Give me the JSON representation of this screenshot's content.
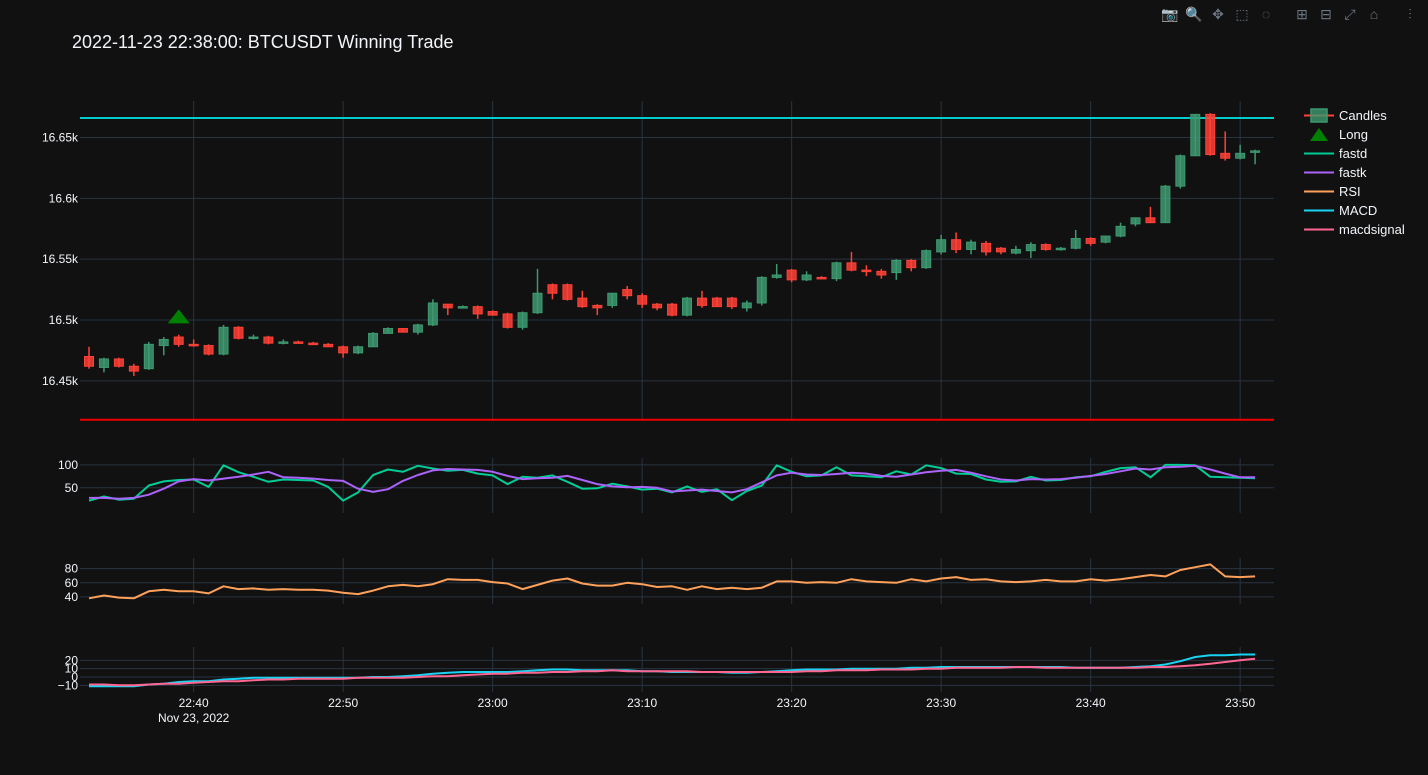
{
  "title": "2022-11-23 22:38:00: BTCUSDT Winning Trade",
  "modebar": [
    {
      "name": "camera-icon",
      "glyph": "📷",
      "active": false
    },
    {
      "name": "zoom-icon",
      "glyph": "🔍",
      "active": true
    },
    {
      "name": "pan-icon",
      "glyph": "✥",
      "active": false
    },
    {
      "name": "box-select-icon",
      "glyph": "⬚",
      "active": false
    },
    {
      "name": "lasso-select-icon",
      "glyph": "◌",
      "active": false
    },
    {
      "name": "sep",
      "glyph": "",
      "active": false
    },
    {
      "name": "zoom-in-icon",
      "glyph": "⊞",
      "active": false
    },
    {
      "name": "zoom-out-icon",
      "glyph": "⊟",
      "active": false
    },
    {
      "name": "autoscale-icon",
      "glyph": "⤢",
      "active": false
    },
    {
      "name": "reset-axes-icon",
      "glyph": "⌂",
      "active": false
    },
    {
      "name": "sep",
      "glyph": "",
      "active": false
    },
    {
      "name": "plotly-logo-icon",
      "glyph": "⫶",
      "active": false
    }
  ],
  "colors": {
    "up": "#3d9970",
    "down": "#ff4136",
    "long": "#008000",
    "fastd": "#00cc96",
    "fastk": "#ab63fa",
    "rsi": "#ffa15a",
    "macd": "#19d3f3",
    "macdsignal": "#ff6692",
    "take_profit": "#00cccc",
    "stop_loss": "#ee0000",
    "grid": "#283442",
    "axis_text": "#f2f5fa"
  },
  "chart_data": {
    "type": "candlestick",
    "x_start": "22:33",
    "x_step_minutes": 1,
    "x_ticks": [
      {
        "label": "22:40",
        "sub": "Nov 23, 2022",
        "index": 7
      },
      {
        "label": "22:50",
        "sub": "",
        "index": 17
      },
      {
        "label": "23:00",
        "sub": "",
        "index": 27
      },
      {
        "label": "23:10",
        "sub": "",
        "index": 37
      },
      {
        "label": "23:20",
        "sub": "",
        "index": 47
      },
      {
        "label": "23:30",
        "sub": "",
        "index": 57
      },
      {
        "label": "23:40",
        "sub": "",
        "index": 67
      },
      {
        "label": "23:50",
        "sub": "",
        "index": 77
      }
    ],
    "price_axis": {
      "ylim": [
        16417,
        16680
      ],
      "ticks": [
        {
          "v": 16450,
          "label": "16.45k"
        },
        {
          "v": 16500,
          "label": "16.5k"
        },
        {
          "v": 16550,
          "label": "16.55k"
        },
        {
          "v": 16600,
          "label": "16.6k"
        },
        {
          "v": 16650,
          "label": "16.65k"
        }
      ]
    },
    "take_profit": 16666,
    "stop_loss": 16418,
    "long_signal": {
      "index": 6,
      "price": 16503
    },
    "candles": [
      [
        16470,
        16478,
        16460,
        16462
      ],
      [
        16461,
        16469,
        16457,
        16468
      ],
      [
        16468,
        16469,
        16461,
        16462
      ],
      [
        16462,
        16464,
        16454,
        16458
      ],
      [
        16460,
        16482,
        16459,
        16480
      ],
      [
        16479,
        16486,
        16471,
        16484
      ],
      [
        16486,
        16488,
        16478,
        16480
      ],
      [
        16480,
        16484,
        16478,
        16479
      ],
      [
        16479,
        16480,
        16471,
        16472
      ],
      [
        16472,
        16496,
        16471,
        16494
      ],
      [
        16494,
        16495,
        16484,
        16485
      ],
      [
        16485,
        16488,
        16484,
        16486
      ],
      [
        16486,
        16487,
        16480,
        16481
      ],
      [
        16481,
        16484,
        16480,
        16482
      ],
      [
        16482,
        16483,
        16481,
        16481
      ],
      [
        16481,
        16482,
        16480,
        16480
      ],
      [
        16480,
        16481,
        16478,
        16478
      ],
      [
        16478,
        16479,
        16469,
        16473
      ],
      [
        16473,
        16479,
        16472,
        16478
      ],
      [
        16478,
        16490,
        16478,
        16489
      ],
      [
        16489,
        16494,
        16489,
        16493
      ],
      [
        16493,
        16493,
        16490,
        16490
      ],
      [
        16490,
        16497,
        16488,
        16496
      ],
      [
        16496,
        16517,
        16495,
        16514
      ],
      [
        16513,
        16513,
        16504,
        16510
      ],
      [
        16510,
        16512,
        16510,
        16511
      ],
      [
        16511,
        16512,
        16501,
        16505
      ],
      [
        16507,
        16508,
        16504,
        16504
      ],
      [
        16505,
        16506,
        16493,
        16494
      ],
      [
        16494,
        16507,
        16492,
        16506
      ],
      [
        16506,
        16542,
        16505,
        16522
      ],
      [
        16529,
        16530,
        16517,
        16522
      ],
      [
        16529,
        16530,
        16516,
        16517
      ],
      [
        16518,
        16524,
        16510,
        16511
      ],
      [
        16512,
        16513,
        16504,
        16510
      ],
      [
        16512,
        16522,
        16510,
        16522
      ],
      [
        16525,
        16528,
        16517,
        16520
      ],
      [
        16520,
        16522,
        16510,
        16513
      ],
      [
        16513,
        16514,
        16508,
        16510
      ],
      [
        16513,
        16514,
        16503,
        16504
      ],
      [
        16504,
        16519,
        16503,
        16518
      ],
      [
        16518,
        16524,
        16510,
        16512
      ],
      [
        16518,
        16519,
        16511,
        16511
      ],
      [
        16518,
        16519,
        16509,
        16511
      ],
      [
        16510,
        16516,
        16507,
        16514
      ],
      [
        16514,
        16536,
        16512,
        16535
      ],
      [
        16535,
        16546,
        16534,
        16537
      ],
      [
        16541,
        16542,
        16531,
        16533
      ],
      [
        16533,
        16540,
        16532,
        16537
      ],
      [
        16535,
        16536,
        16534,
        16534
      ],
      [
        16534,
        16548,
        16532,
        16547
      ],
      [
        16547,
        16556,
        16540,
        16541
      ],
      [
        16541,
        16545,
        16536,
        16540
      ],
      [
        16540,
        16542,
        16534,
        16537
      ],
      [
        16539,
        16550,
        16533,
        16549
      ],
      [
        16549,
        16550,
        16540,
        16543
      ],
      [
        16543,
        16558,
        16542,
        16557
      ],
      [
        16556,
        16570,
        16554,
        16566
      ],
      [
        16566,
        16572,
        16555,
        16558
      ],
      [
        16558,
        16566,
        16554,
        16564
      ],
      [
        16563,
        16565,
        16553,
        16556
      ],
      [
        16559,
        16560,
        16554,
        16556
      ],
      [
        16555,
        16561,
        16554,
        16558
      ],
      [
        16557,
        16564,
        16551,
        16562
      ],
      [
        16562,
        16563,
        16557,
        16558
      ],
      [
        16559,
        16560,
        16557,
        16559
      ],
      [
        16559,
        16574,
        16558,
        16567
      ],
      [
        16567,
        16568,
        16561,
        16563
      ],
      [
        16564,
        16569,
        16563,
        16569
      ],
      [
        16569,
        16580,
        16568,
        16577
      ],
      [
        16579,
        16584,
        16577,
        16584
      ],
      [
        16584,
        16593,
        16580,
        16580
      ],
      [
        16580,
        16611,
        16580,
        16610
      ],
      [
        16610,
        16636,
        16608,
        16635
      ],
      [
        16635,
        16669,
        16635,
        16669
      ],
      [
        16669,
        16670,
        16635,
        16636
      ],
      [
        16637,
        16655,
        16631,
        16633
      ],
      [
        16633,
        16644,
        16632,
        16637
      ],
      [
        16638,
        16640,
        16628,
        16639
      ]
    ],
    "stoch_axis": {
      "ylim": [
        -5,
        115
      ],
      "ticks": [
        {
          "v": 50,
          "label": "50"
        },
        {
          "v": 100,
          "label": "100"
        }
      ]
    },
    "fastd": [
      22,
      31,
      24,
      26,
      55,
      64,
      67,
      68,
      52,
      99,
      84,
      74,
      63,
      68,
      67,
      66,
      52,
      22,
      40,
      78,
      90,
      85,
      98,
      92,
      87,
      89,
      81,
      77,
      58,
      74,
      72,
      77,
      63,
      48,
      49,
      59,
      53,
      46,
      48,
      40,
      53,
      41,
      47,
      23,
      43,
      55,
      99,
      85,
      75,
      77,
      95,
      77,
      75,
      73,
      86,
      79,
      99,
      93,
      81,
      80,
      68,
      63,
      64,
      74,
      66,
      67,
      73,
      75,
      85,
      93,
      95,
      73,
      100,
      100,
      99,
      74,
      73,
      72,
      71
    ],
    "fastk": [
      28,
      28,
      26,
      28,
      35,
      48,
      64,
      69,
      66,
      70,
      74,
      79,
      85,
      73,
      72,
      70,
      67,
      65,
      48,
      41,
      47,
      65,
      78,
      88,
      91,
      90,
      89,
      85,
      76,
      69,
      71,
      72,
      76,
      67,
      58,
      53,
      51,
      52,
      50,
      42,
      44,
      46,
      43,
      40,
      47,
      62,
      77,
      83,
      79,
      78,
      80,
      83,
      81,
      76,
      74,
      79,
      84,
      87,
      89,
      83,
      75,
      68,
      66,
      69,
      68,
      69,
      72,
      76,
      80,
      86,
      92,
      90,
      95,
      96,
      98,
      90,
      81,
      73,
      73
    ],
    "rsi_axis": {
      "ylim": [
        30,
        95
      ],
      "ticks": [
        {
          "v": 40,
          "label": "40"
        },
        {
          "v": 60,
          "label": "60"
        },
        {
          "v": 80,
          "label": "80"
        }
      ]
    },
    "rsi": [
      38,
      42,
      39,
      38,
      48,
      50,
      48,
      48,
      45,
      55,
      51,
      52,
      50,
      51,
      50,
      50,
      49,
      46,
      44,
      49,
      55,
      57,
      55,
      58,
      65,
      64,
      64,
      61,
      59,
      51,
      57,
      63,
      66,
      59,
      56,
      56,
      60,
      58,
      54,
      55,
      50,
      55,
      51,
      53,
      51,
      53,
      62,
      62,
      60,
      61,
      60,
      65,
      62,
      61,
      60,
      65,
      62,
      66,
      68,
      64,
      65,
      62,
      61,
      62,
      64,
      62,
      62,
      65,
      63,
      65,
      68,
      71,
      69,
      78,
      82,
      86,
      69,
      68,
      69
    ],
    "macd_axis": {
      "ylim": [
        -18,
        36
      ],
      "ticks": [
        {
          "v": -10,
          "label": "−10"
        },
        {
          "v": 0,
          "label": "0"
        },
        {
          "v": 10,
          "label": "10"
        },
        {
          "v": 20,
          "label": "20"
        }
      ]
    },
    "macd": [
      -11,
      -11,
      -11,
      -11,
      -9,
      -8,
      -6,
      -5,
      -5,
      -3,
      -2,
      -1,
      -1,
      -1,
      -1,
      -1,
      -1,
      -1,
      -1,
      0,
      0,
      1,
      2,
      4,
      5,
      6,
      6,
      6,
      6,
      7,
      8,
      9,
      9,
      8,
      8,
      8,
      8,
      7,
      7,
      6,
      6,
      6,
      6,
      5,
      5,
      6,
      7,
      8,
      9,
      9,
      9,
      10,
      10,
      10,
      10,
      11,
      11,
      12,
      12,
      12,
      12,
      12,
      12,
      12,
      12,
      12,
      11,
      11,
      11,
      11,
      12,
      13,
      15,
      19,
      24,
      26,
      26,
      27,
      27
    ],
    "macdsignal": [
      -9,
      -9,
      -10,
      -10,
      -9,
      -8,
      -8,
      -7,
      -6,
      -5,
      -5,
      -4,
      -3,
      -3,
      -2,
      -2,
      -2,
      -2,
      -1,
      -1,
      -1,
      -1,
      0,
      1,
      1,
      2,
      3,
      4,
      4,
      5,
      5,
      6,
      6,
      7,
      7,
      8,
      7,
      7,
      7,
      7,
      7,
      6,
      6,
      6,
      6,
      6,
      6,
      6,
      7,
      7,
      8,
      8,
      8,
      9,
      9,
      9,
      10,
      10,
      11,
      11,
      11,
      11,
      12,
      12,
      11,
      11,
      11,
      11,
      11,
      11,
      11,
      12,
      12,
      13,
      14,
      16,
      18,
      20,
      22
    ]
  },
  "legend": [
    {
      "key": "candles",
      "label": "Candles"
    },
    {
      "key": "long",
      "label": "Long"
    },
    {
      "key": "fastd",
      "label": "fastd"
    },
    {
      "key": "fastk",
      "label": "fastk"
    },
    {
      "key": "rsi",
      "label": "RSI"
    },
    {
      "key": "macd",
      "label": "MACD"
    },
    {
      "key": "macdsignal",
      "label": "macdsignal"
    }
  ]
}
